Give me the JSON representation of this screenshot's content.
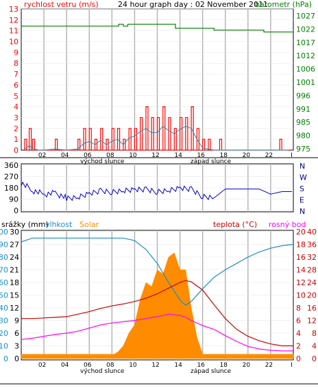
{
  "colors": {
    "wind": "#ff0000",
    "gust": "#1a8cb0",
    "pressure": "#007f00",
    "direction": "#0000cc",
    "humidity": "#1a8cc8",
    "solar": "#ff8c00",
    "temperature": "#cc0000",
    "dewpoint": "#ff00ff",
    "rain": "#1a8cc8",
    "grid": "#b0b0b0"
  },
  "header": {
    "title": "24 hour graph day : 02 November 2011",
    "wind_label": "rychlost vetru (m/s)",
    "pressure_label": "barometr (hPa)"
  },
  "bottom_header": {
    "rain_label": "srážky (mm)",
    "humidity_label": "vlhkost",
    "solar_label": "Solar",
    "temperature_label": "teplota (°C)",
    "dewpoint_label": "rosný bod"
  },
  "x_axis": {
    "hour_ticks": [
      "02",
      "04",
      "06",
      "08",
      "10",
      "12",
      "14",
      "16",
      "18",
      "20",
      "22",
      "I"
    ],
    "sunrise_label": "východ slunce",
    "sunset_label": "západ slunce"
  },
  "chart_data": [
    {
      "type": "line",
      "name": "wind_pressure",
      "x_range": [
        0,
        24
      ],
      "y_left_ticks": [
        "0",
        "1",
        "2",
        "3",
        "4",
        "5",
        "6",
        "7",
        "8",
        "9",
        "10",
        "11",
        "12",
        "13"
      ],
      "y_right_ticks": [
        "975",
        "980",
        "985",
        "991",
        "996",
        "1001",
        "1006",
        "1012",
        "1017",
        "1022",
        "1027"
      ],
      "ylim_left": [
        0,
        13
      ],
      "ylim_right": [
        974.4,
        1027
      ],
      "wind_gust_hours": [
        0.3,
        0.7,
        1.0,
        1.5,
        2.0,
        3.0,
        4.0,
        5.0,
        5.5,
        6.0,
        6.5,
        7.0,
        7.5,
        8.0,
        8.5,
        9.0,
        9.5,
        10.0,
        10.5,
        11.0,
        11.5,
        12.0,
        12.5,
        13.0,
        13.5,
        14.0,
        14.5,
        15.0,
        15.5,
        16.0,
        16.5,
        17.0,
        17.5,
        18.0,
        20.0,
        22.0,
        22.8,
        23.5
      ],
      "wind_gust_values": [
        1,
        2,
        1,
        0,
        0,
        1,
        0,
        1,
        2,
        2,
        1,
        2,
        1,
        2,
        2,
        1,
        2,
        2,
        3,
        4,
        3,
        3,
        4,
        3,
        2,
        3,
        3,
        4,
        2,
        1,
        1,
        0,
        1,
        0,
        0,
        0,
        1,
        0
      ],
      "wind_avg_values": [
        0.1,
        0.4,
        0.2,
        0,
        0,
        0.1,
        0,
        0.1,
        0.6,
        0.8,
        0.5,
        0.9,
        0.5,
        0.8,
        1.0,
        0.5,
        1.1,
        1.3,
        1.7,
        2.0,
        1.6,
        1.6,
        2.2,
        1.8,
        1.5,
        1.9,
        2.2,
        2.0,
        1.0,
        0.2,
        0.1,
        0,
        0,
        0,
        0,
        0,
        0,
        0
      ],
      "pressure_hours": [
        0,
        8.6,
        8.6,
        9.0,
        9.0,
        9.4,
        9.4,
        13.6,
        13.6,
        17.0,
        17.0,
        21.4,
        21.4,
        24
      ],
      "pressure_values": [
        1020.6,
        1020.6,
        1021.3,
        1021.3,
        1020.6,
        1020.6,
        1021.3,
        1021.3,
        1019.8,
        1019.8,
        1019.1,
        1019.1,
        1018.4,
        1018.4
      ]
    },
    {
      "type": "line",
      "name": "wind_direction",
      "y_ticks": [
        "0",
        "90",
        "180",
        "270",
        "360"
      ],
      "compass_labels": [
        "N",
        "W",
        "S",
        "E",
        "N"
      ],
      "ylim": [
        0,
        360
      ],
      "hours": [
        0,
        1,
        2,
        3,
        4,
        5,
        6,
        7,
        8,
        9,
        10,
        11,
        12,
        13,
        14,
        15,
        16,
        17,
        18,
        19,
        20,
        21,
        22,
        23,
        24
      ],
      "values": [
        220,
        160,
        130,
        140,
        100,
        110,
        140,
        160,
        150,
        160,
        170,
        170,
        150,
        160,
        180,
        170,
        110,
        100,
        170,
        170,
        170,
        170,
        130,
        150,
        150
      ]
    },
    {
      "type": "area",
      "name": "temp_humidity_solar",
      "y_left_ticks": [
        "0",
        "3",
        "6",
        "9",
        "12",
        "15",
        "18",
        "21",
        "24",
        "27",
        "30"
      ],
      "y_left2_ticks": [
        "0",
        "10",
        "20",
        "30",
        "40",
        "50",
        "60",
        "70",
        "80",
        "90",
        "100"
      ],
      "y_right_ticks": [
        "0",
        "2",
        "4",
        "6",
        "8",
        "10",
        "12",
        "14",
        "16",
        "18",
        "20"
      ],
      "y_right2_ticks": [
        "0",
        "4",
        "8",
        "12",
        "16",
        "20",
        "24",
        "28",
        "32",
        "36",
        "40"
      ],
      "ylim_left": [
        0,
        30
      ],
      "ylim_right": [
        0,
        40
      ],
      "hours": [
        0,
        1,
        2,
        3,
        4,
        5,
        6,
        7,
        8,
        9,
        10,
        11,
        12,
        13,
        14,
        14.5,
        15,
        16,
        17,
        18,
        19,
        20,
        21,
        22,
        23,
        24
      ],
      "humidity_values": [
        92,
        95,
        95,
        95,
        95,
        95,
        95,
        95,
        95,
        95,
        93,
        86,
        75,
        60,
        46,
        42,
        45,
        55,
        64,
        70,
        75,
        80,
        84,
        87,
        89,
        90
      ],
      "temperature_values": [
        6.3,
        6.3,
        6.4,
        6.5,
        6.6,
        7.0,
        7.4,
        7.9,
        8.3,
        8.6,
        9.0,
        9.5,
        10.2,
        11.1,
        12.0,
        12.3,
        12.1,
        10.8,
        8.5,
        6.3,
        4.6,
        3.5,
        2.8,
        2.3,
        2.0,
        2.0
      ],
      "dewpoint_values": [
        3.0,
        3.2,
        3.5,
        3.8,
        4.0,
        4.3,
        4.8,
        5.3,
        5.6,
        5.8,
        6.0,
        6.3,
        6.6,
        7.0,
        6.8,
        6.5,
        6.0,
        5.2,
        4.6,
        3.6,
        2.7,
        1.9,
        1.5,
        1.3,
        1.2,
        1.2
      ],
      "solar_hours": [
        0,
        8.2,
        8.5,
        9.0,
        9.5,
        10.0,
        10.5,
        11.0,
        11.5,
        12.0,
        12.5,
        13.0,
        13.5,
        14.0,
        14.5,
        15.0,
        15.5,
        16.0,
        24
      ],
      "solar_values": [
        1.0,
        1.0,
        1.5,
        3.0,
        6.0,
        10.0,
        14.0,
        16.0,
        18.0,
        20.0,
        22.0,
        24.0,
        23.0,
        22.0,
        20.0,
        14.0,
        5.0,
        1.0,
        1.0
      ]
    }
  ]
}
